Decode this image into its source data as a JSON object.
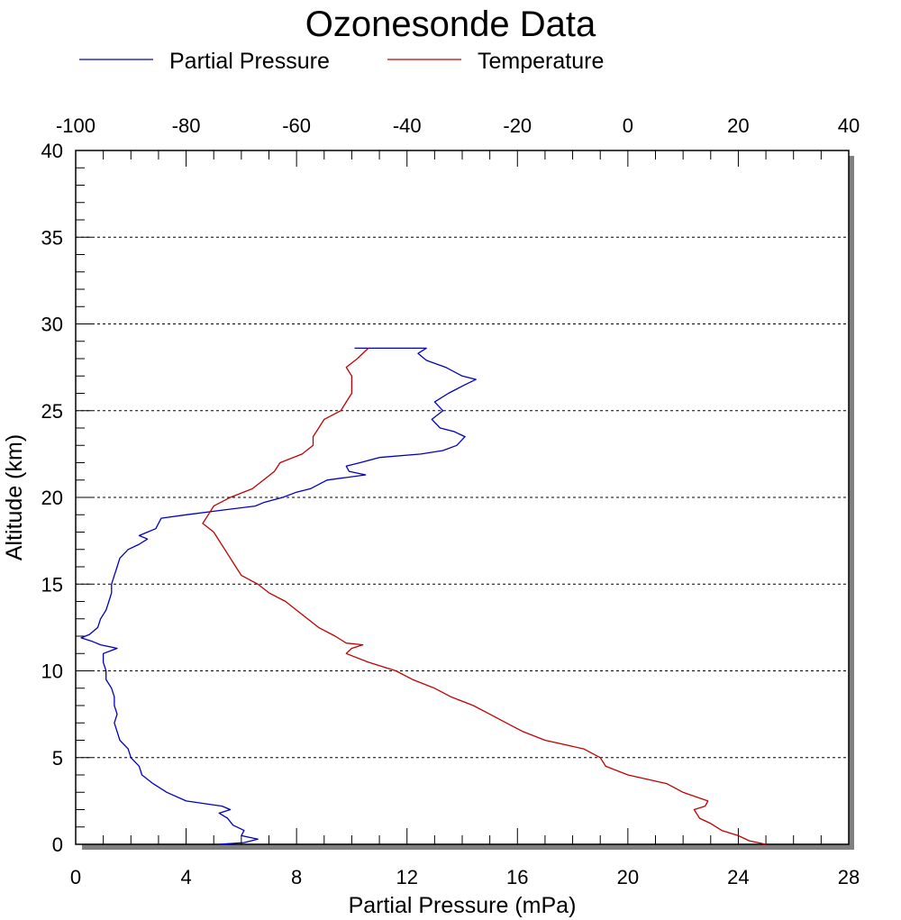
{
  "chart_data": {
    "type": "line",
    "title": "Ozonesonde Data",
    "xlabel": "Partial Pressure (mPa)",
    "ylabel": "Altitude (km)",
    "xlim": [
      0,
      28
    ],
    "x_ticks": [
      "0",
      "4",
      "8",
      "12",
      "16",
      "20",
      "24",
      "28"
    ],
    "x2lim": [
      -100,
      40
    ],
    "x2_ticks": [
      "-100",
      "-80",
      "-60",
      "-40",
      "-20",
      "0",
      "20",
      "40"
    ],
    "ylim": [
      0,
      40
    ],
    "y_ticks": [
      "0",
      "5",
      "10",
      "15",
      "20",
      "25",
      "30",
      "35",
      "40"
    ],
    "grid": "horizontal dotted at 5, 10, 15, 20, 25, 30, 35",
    "legend_placement": "top",
    "series": [
      {
        "name": "Partial Pressure",
        "axis": "bottom",
        "color": "#0000c0",
        "points": [
          [
            5.2,
            0.0
          ],
          [
            6.1,
            0.1
          ],
          [
            6.6,
            0.3
          ],
          [
            6.0,
            0.5
          ],
          [
            6.1,
            0.8
          ],
          [
            5.7,
            1.1
          ],
          [
            5.5,
            1.5
          ],
          [
            5.2,
            1.8
          ],
          [
            5.6,
            2.0
          ],
          [
            5.3,
            2.2
          ],
          [
            4.0,
            2.5
          ],
          [
            3.3,
            3.0
          ],
          [
            2.8,
            3.5
          ],
          [
            2.4,
            4.0
          ],
          [
            2.3,
            4.5
          ],
          [
            2.0,
            5.0
          ],
          [
            1.9,
            5.5
          ],
          [
            1.6,
            6.0
          ],
          [
            1.5,
            6.5
          ],
          [
            1.4,
            7.0
          ],
          [
            1.5,
            7.5
          ],
          [
            1.4,
            8.0
          ],
          [
            1.4,
            8.5
          ],
          [
            1.3,
            9.0
          ],
          [
            1.1,
            9.5
          ],
          [
            1.1,
            10.0
          ],
          [
            1.0,
            10.5
          ],
          [
            1.0,
            11.0
          ],
          [
            1.5,
            11.3
          ],
          [
            0.9,
            11.5
          ],
          [
            0.6,
            11.7
          ],
          [
            0.2,
            11.9
          ],
          [
            0.5,
            12.1
          ],
          [
            0.8,
            12.5
          ],
          [
            0.9,
            13.0
          ],
          [
            1.1,
            13.5
          ],
          [
            1.2,
            14.0
          ],
          [
            1.3,
            14.5
          ],
          [
            1.3,
            15.0
          ],
          [
            1.4,
            15.5
          ],
          [
            1.5,
            16.0
          ],
          [
            1.6,
            16.5
          ],
          [
            1.9,
            17.0
          ],
          [
            2.3,
            17.3
          ],
          [
            2.6,
            17.6
          ],
          [
            2.3,
            17.8
          ],
          [
            2.6,
            18.0
          ],
          [
            2.9,
            18.2
          ],
          [
            3.0,
            18.5
          ],
          [
            3.1,
            18.8
          ],
          [
            4.0,
            19.0
          ],
          [
            5.0,
            19.2
          ],
          [
            6.5,
            19.5
          ],
          [
            6.8,
            19.7
          ],
          [
            7.5,
            20.0
          ],
          [
            8.0,
            20.3
          ],
          [
            8.5,
            20.5
          ],
          [
            9.1,
            21.0
          ],
          [
            10.5,
            21.3
          ],
          [
            9.9,
            21.5
          ],
          [
            9.8,
            21.8
          ],
          [
            10.3,
            22.0
          ],
          [
            11.0,
            22.3
          ],
          [
            12.5,
            22.5
          ],
          [
            13.3,
            22.7
          ],
          [
            13.8,
            23.0
          ],
          [
            14.1,
            23.5
          ],
          [
            13.7,
            23.8
          ],
          [
            13.2,
            24.0
          ],
          [
            12.9,
            24.5
          ],
          [
            13.3,
            25.0
          ],
          [
            13.0,
            25.5
          ],
          [
            13.5,
            26.0
          ],
          [
            14.1,
            26.5
          ],
          [
            14.5,
            26.8
          ],
          [
            14.0,
            27.0
          ],
          [
            13.4,
            27.5
          ],
          [
            12.7,
            27.9
          ],
          [
            12.4,
            28.3
          ],
          [
            12.7,
            28.6
          ],
          [
            11.5,
            28.6
          ],
          [
            10.1,
            28.6
          ]
        ]
      },
      {
        "name": "Temperature",
        "axis": "top",
        "color": "#c00000",
        "points": [
          [
            25.0,
            0.0
          ],
          [
            22.0,
            0.2
          ],
          [
            20.0,
            0.5
          ],
          [
            17.0,
            0.8
          ],
          [
            15.0,
            1.2
          ],
          [
            13.0,
            1.5
          ],
          [
            12.0,
            2.0
          ],
          [
            14.0,
            2.2
          ],
          [
            14.5,
            2.5
          ],
          [
            10.0,
            3.0
          ],
          [
            7.0,
            3.5
          ],
          [
            0.0,
            4.0
          ],
          [
            -4.0,
            4.5
          ],
          [
            -5.0,
            5.0
          ],
          [
            -8.0,
            5.5
          ],
          [
            -15.0,
            6.0
          ],
          [
            -19.0,
            6.5
          ],
          [
            -22.0,
            7.0
          ],
          [
            -25.0,
            7.5
          ],
          [
            -28.0,
            8.0
          ],
          [
            -32.0,
            8.5
          ],
          [
            -35.0,
            9.0
          ],
          [
            -39.0,
            9.5
          ],
          [
            -42.0,
            10.0
          ],
          [
            -47.0,
            10.5
          ],
          [
            -51.0,
            11.0
          ],
          [
            -50.0,
            11.3
          ],
          [
            -48.0,
            11.5
          ],
          [
            -51.0,
            11.6
          ],
          [
            -53.0,
            12.0
          ],
          [
            -56.0,
            12.5
          ],
          [
            -58.0,
            13.0
          ],
          [
            -60.0,
            13.5
          ],
          [
            -62.0,
            14.0
          ],
          [
            -65.0,
            14.5
          ],
          [
            -67.0,
            15.0
          ],
          [
            -70.0,
            15.5
          ],
          [
            -71.0,
            16.0
          ],
          [
            -72.0,
            16.5
          ],
          [
            -73.0,
            17.0
          ],
          [
            -74.0,
            17.5
          ],
          [
            -75.0,
            18.0
          ],
          [
            -77.0,
            18.5
          ],
          [
            -76.0,
            19.0
          ],
          [
            -75.0,
            19.5
          ],
          [
            -72.0,
            20.0
          ],
          [
            -68.0,
            20.5
          ],
          [
            -66.0,
            21.0
          ],
          [
            -64.0,
            21.5
          ],
          [
            -63.0,
            22.0
          ],
          [
            -59.0,
            22.5
          ],
          [
            -57.0,
            23.0
          ],
          [
            -57.0,
            23.5
          ],
          [
            -56.0,
            24.0
          ],
          [
            -55.0,
            24.5
          ],
          [
            -52.0,
            25.0
          ],
          [
            -51.0,
            25.5
          ],
          [
            -50.0,
            26.0
          ],
          [
            -50.0,
            26.5
          ],
          [
            -50.0,
            27.0
          ],
          [
            -51.0,
            27.5
          ],
          [
            -49.0,
            28.0
          ],
          [
            -47.0,
            28.6
          ]
        ]
      }
    ]
  }
}
